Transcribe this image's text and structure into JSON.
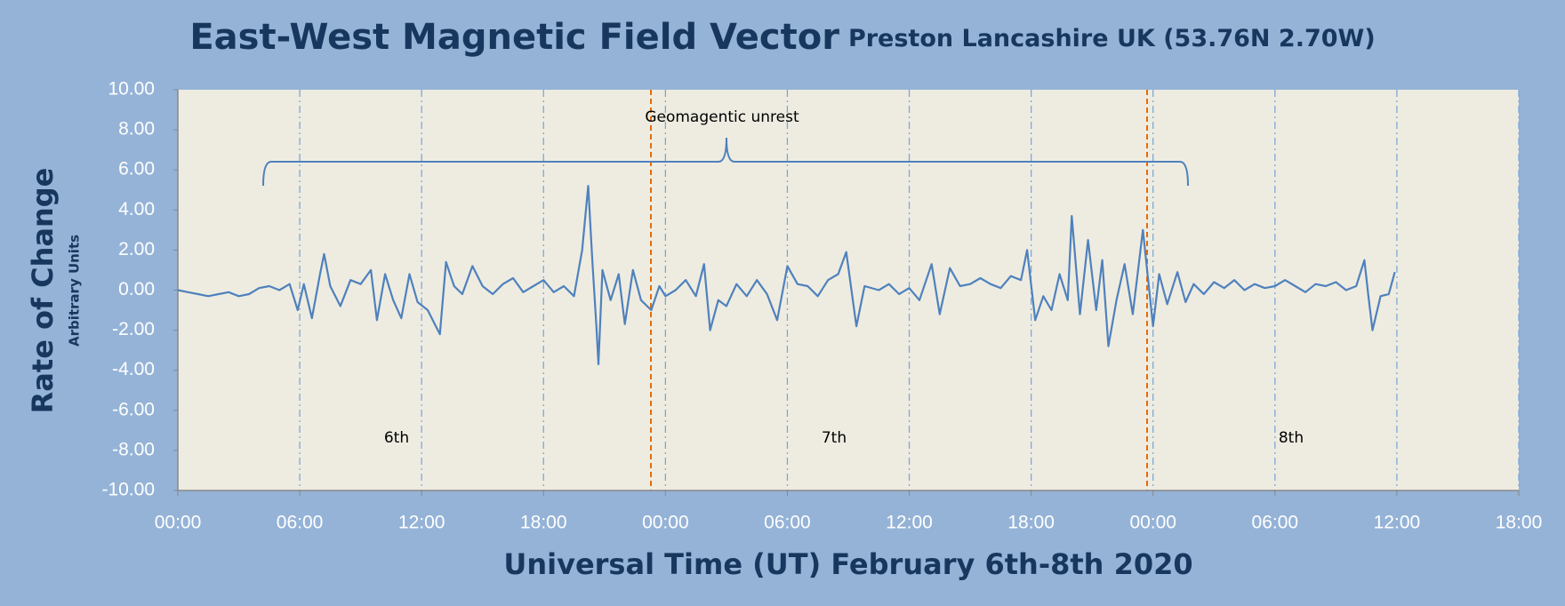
{
  "chart_data": {
    "type": "line",
    "title": "East-West Magnetic Field Vector",
    "subtitle": "Preston Lancashire UK (53.76N 2.70W)",
    "y_label": "Rate of Change",
    "y_sublabel": "Arbitrary Units",
    "x_label": "Universal Time (UT) February 6th-8th 2020",
    "annotation": "Geomagentic unrest",
    "day_labels": [
      "6th",
      "7th",
      "8th"
    ],
    "color": "#4f81bd",
    "xgrid": true,
    "xlim": [
      0,
      66
    ],
    "xticks": [
      {
        "value": 0,
        "label": "00:00"
      },
      {
        "value": 6,
        "label": "06:00"
      },
      {
        "value": 12,
        "label": "12:00"
      },
      {
        "value": 18,
        "label": "18:00"
      },
      {
        "value": 24,
        "label": "00:00"
      },
      {
        "value": 30,
        "label": "06:00"
      },
      {
        "value": 36,
        "label": "12:00"
      },
      {
        "value": 42,
        "label": "18:00"
      },
      {
        "value": 48,
        "label": "00:00"
      },
      {
        "value": 54,
        "label": "06:00"
      },
      {
        "value": 60,
        "label": "12:00"
      },
      {
        "value": 66,
        "label": "18:00"
      }
    ],
    "ylim": [
      -10,
      10
    ],
    "yticks": [
      {
        "value": 10,
        "label": "10.00"
      },
      {
        "value": 8,
        "label": "8.00"
      },
      {
        "value": 6,
        "label": "6.00"
      },
      {
        "value": 4,
        "label": "4.00"
      },
      {
        "value": 2,
        "label": "2.00"
      },
      {
        "value": 0,
        "label": "0.00"
      },
      {
        "value": -2,
        "label": "-2.00"
      },
      {
        "value": -4,
        "label": "-4.00"
      },
      {
        "value": -6,
        "label": "-6.00"
      },
      {
        "value": -8,
        "label": "-8.00"
      },
      {
        "value": -10,
        "label": "-10.00"
      }
    ],
    "x": [
      0,
      0.5,
      1,
      1.5,
      2,
      2.5,
      3,
      3.5,
      4,
      4.5,
      5,
      5.5,
      5.9,
      6.2,
      6.6,
      7,
      7.2,
      7.5,
      8,
      8.5,
      9,
      9.5,
      9.8,
      10.2,
      10.6,
      11,
      11.4,
      11.8,
      12.3,
      12.9,
      13.2,
      13.6,
      14,
      14.5,
      15,
      15.5,
      16,
      16.5,
      17,
      17.5,
      18,
      18.5,
      19,
      19.5,
      19.9,
      20.2,
      20.4,
      20.6,
      20.7,
      20.9,
      21.3,
      21.7,
      22,
      22.4,
      22.8,
      23.3,
      23.7,
      24,
      24.5,
      25,
      25.5,
      25.9,
      26.2,
      26.6,
      27,
      27.5,
      28,
      28.5,
      29,
      29.5,
      30,
      30.5,
      31,
      31.5,
      32,
      32.5,
      32.9,
      33.4,
      33.8,
      34.5,
      35,
      35.5,
      36,
      36.5,
      37.1,
      37.5,
      38,
      38.5,
      39,
      39.5,
      40,
      40.5,
      41,
      41.5,
      41.8,
      42.2,
      42.6,
      43,
      43.4,
      43.8,
      44,
      44.4,
      44.8,
      45.2,
      45.5,
      45.8,
      46.2,
      46.6,
      47,
      47.5,
      48,
      48.3,
      48.7,
      49.2,
      49.6,
      50,
      50.5,
      51,
      51.5,
      52,
      52.5,
      53,
      53.5,
      54,
      54.5,
      55,
      55.5,
      56,
      56.5,
      57,
      57.5,
      58,
      58.4,
      58.6,
      58.8,
      59.2,
      59.6,
      59.9
    ],
    "values": [
      0,
      -0.1,
      -0.2,
      -0.3,
      -0.2,
      -0.1,
      -0.3,
      -0.2,
      0.1,
      0.2,
      0,
      0.3,
      -1.0,
      0.3,
      -1.4,
      0.8,
      1.8,
      0.2,
      -0.8,
      0.5,
      0.3,
      1.0,
      -1.5,
      0.8,
      -0.5,
      -1.4,
      0.8,
      -0.6,
      -1.0,
      -2.2,
      1.4,
      0.2,
      -0.2,
      1.2,
      0.2,
      -0.2,
      0.3,
      0.6,
      -0.1,
      0.2,
      0.5,
      -0.1,
      0.2,
      -0.3,
      2.0,
      5.2,
      1.5,
      -1.8,
      -3.7,
      1.0,
      -0.5,
      0.8,
      -1.7,
      1.0,
      -0.5,
      -1.0,
      0.2,
      -0.3,
      0,
      0.5,
      -0.3,
      1.3,
      -2.0,
      -0.5,
      -0.8,
      0.3,
      -0.3,
      0.5,
      -0.2,
      -1.5,
      1.2,
      0.3,
      0.2,
      -0.3,
      0.5,
      0.8,
      1.9,
      -1.8,
      0.2,
      0,
      0.3,
      -0.2,
      0.1,
      -0.5,
      1.3,
      -1.2,
      1.1,
      0.2,
      0.3,
      0.6,
      0.3,
      0.1,
      0.7,
      0.5,
      2.0,
      -1.5,
      -0.3,
      -1.0,
      0.8,
      -0.5,
      3.7,
      -1.2,
      2.5,
      -1.0,
      1.5,
      -2.8,
      -0.5,
      1.3,
      -1.2,
      3.0,
      -1.8,
      0.8,
      -0.7,
      0.9,
      -0.6,
      0.3,
      -0.2,
      0.4,
      0.1,
      0.5,
      0,
      0.3,
      0.1,
      0.2,
      0.5,
      0.2,
      -0.1,
      0.3,
      0.2,
      0.4,
      0,
      0.2,
      1.5,
      -0.3,
      -2.0,
      -0.3,
      -0.2,
      0.9
    ]
  }
}
